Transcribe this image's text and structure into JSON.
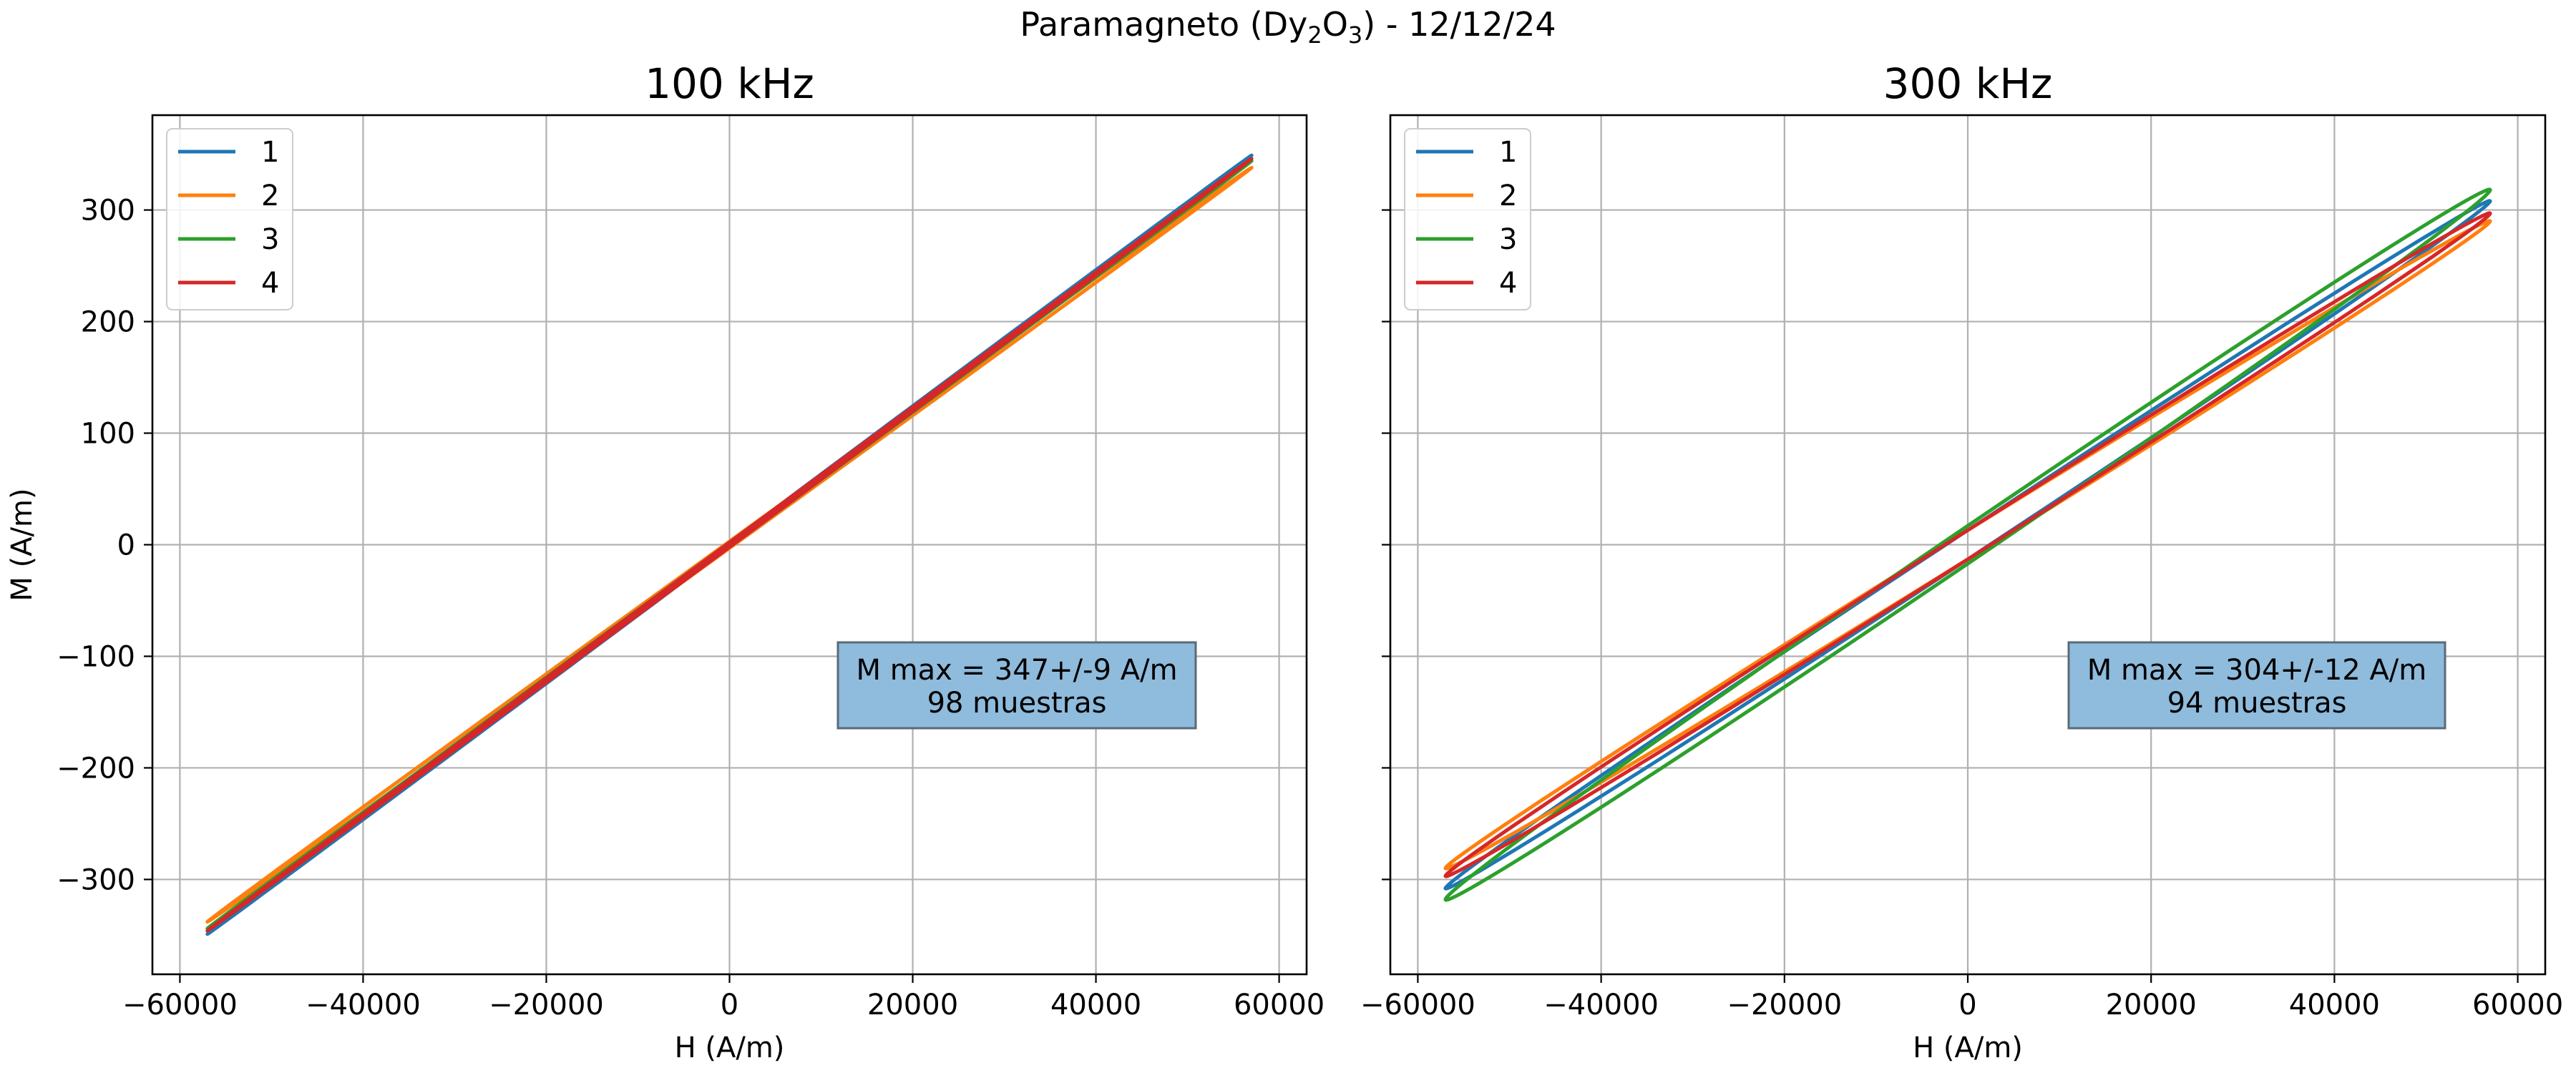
{
  "figure": {
    "suptitle": {
      "prefix": "Paramagneto (Dy",
      "sub1": "2",
      "mid": "O",
      "sub2": "3",
      "suffix": ") - 12/12/24"
    }
  },
  "colors": {
    "series1": "#1f77b4",
    "series2": "#ff7f0e",
    "series3": "#2ca02c",
    "series4": "#d62728",
    "box_fill": "#8fbbdc",
    "box_edge": "#5a6b78",
    "grid": "#b0b0b0"
  },
  "chart_data": [
    {
      "type": "line",
      "title": "100 kHz",
      "xlabel": "H (A/m)",
      "ylabel": "M (A/m)",
      "xlim": [
        -63000,
        63000
      ],
      "ylim": [
        -385,
        385
      ],
      "xticks": [
        -60000,
        -40000,
        -20000,
        0,
        20000,
        40000,
        60000
      ],
      "yticks": [
        -300,
        -200,
        -100,
        0,
        100,
        200,
        300
      ],
      "xtick_labels": [
        "−60000",
        "−40000",
        "−20000",
        "0",
        "20000",
        "40000",
        "60000"
      ],
      "ytick_labels": [
        "−300",
        "−200",
        "−100",
        "0",
        "100",
        "200",
        "300"
      ],
      "grid": true,
      "legend": {
        "position": "top-left",
        "entries": [
          "1",
          "2",
          "3",
          "4"
        ]
      },
      "annotation": {
        "line1": "M max = 347+/-9 A/m",
        "line2": "98 muestras"
      },
      "series": [
        {
          "name": "1",
          "amplitude_h": 57000,
          "m_max": 349,
          "loop_offset": 2
        },
        {
          "name": "2",
          "amplitude_h": 57000,
          "m_max": 338,
          "loop_offset": 3
        },
        {
          "name": "3",
          "amplitude_h": 57000,
          "m_max": 344,
          "loop_offset": 2
        },
        {
          "name": "4",
          "amplitude_h": 57000,
          "m_max": 346,
          "loop_offset": 2
        }
      ]
    },
    {
      "type": "line",
      "title": "300 kHz",
      "xlabel": "H (A/m)",
      "ylabel": "",
      "xlim": [
        -63000,
        63000
      ],
      "ylim": [
        -385,
        385
      ],
      "xticks": [
        -60000,
        -40000,
        -20000,
        0,
        20000,
        40000,
        60000
      ],
      "yticks": [
        -300,
        -200,
        -100,
        0,
        100,
        200,
        300
      ],
      "xtick_labels": [
        "−60000",
        "−40000",
        "−20000",
        "0",
        "20000",
        "40000",
        "60000"
      ],
      "ytick_labels": [],
      "grid": true,
      "legend": {
        "position": "top-left",
        "entries": [
          "1",
          "2",
          "3",
          "4"
        ]
      },
      "annotation": {
        "line1": "M max = 304+/-12 A/m",
        "line2": "94 muestras"
      },
      "series": [
        {
          "name": "1",
          "amplitude_h": 57000,
          "m_max": 308,
          "loop_offset": 13
        },
        {
          "name": "2",
          "amplitude_h": 57000,
          "m_max": 290,
          "loop_offset": 13
        },
        {
          "name": "3",
          "amplitude_h": 57000,
          "m_max": 318,
          "loop_offset": 17
        },
        {
          "name": "4",
          "amplitude_h": 57000,
          "m_max": 297,
          "loop_offset": 13
        }
      ]
    }
  ]
}
